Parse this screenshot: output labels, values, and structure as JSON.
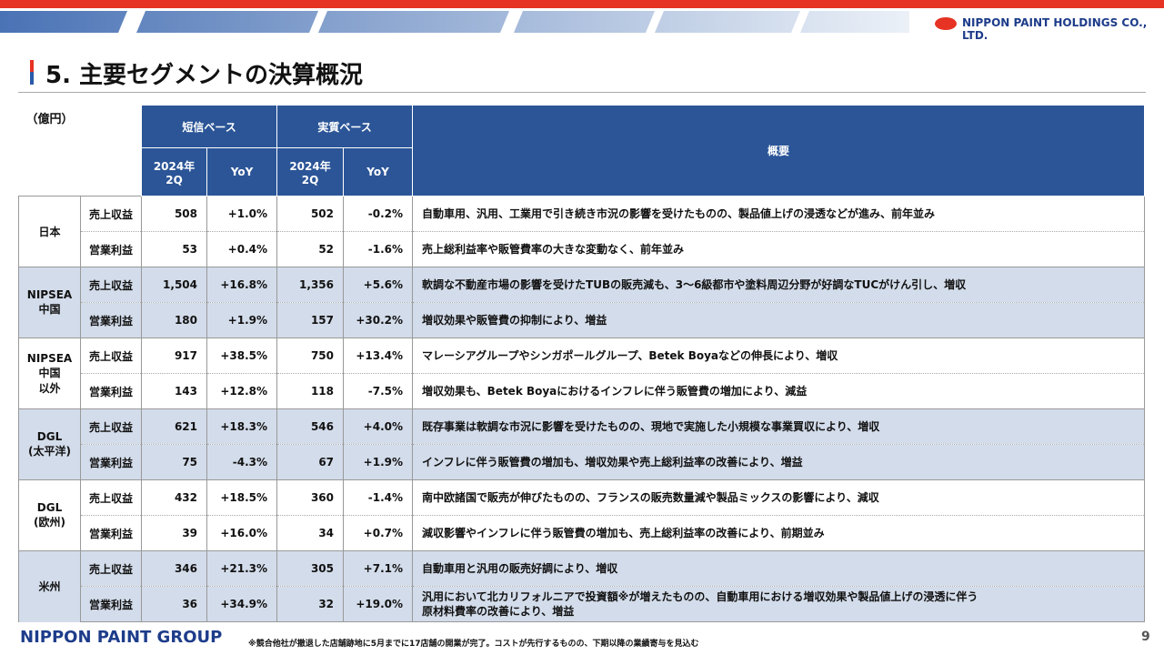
{
  "header": {
    "company": "NIPPON PAINT HOLDINGS CO., LTD.",
    "title": "5. 主要セグメントの決算概況"
  },
  "table": {
    "unit": "（億円）",
    "group_headers": [
      "短信ベース",
      "実質ベース"
    ],
    "summary_header": "概要",
    "sub_headers": [
      "2024年\n2Q",
      "YoY",
      "2024年\n2Q",
      "YoY"
    ],
    "segments": [
      {
        "name": "日本",
        "rows": [
          [
            "売上収益",
            "508",
            "+1.0%",
            "502",
            "-0.2%",
            "自動車用、汎用、工業用で引き続き市況の影響を受けたものの、製品値上げの浸透などが進み、前年並み"
          ],
          [
            "営業利益",
            "53",
            "+0.4%",
            "52",
            "-1.6%",
            "売上総利益率や販管費率の大きな変動なく、前年並み"
          ]
        ]
      },
      {
        "name": "NIPSEA\n中国",
        "rows": [
          [
            "売上収益",
            "1,504",
            "+16.8%",
            "1,356",
            "+5.6%",
            "軟調な不動産市場の影響を受けたTUBの販売減も、3～6級都市や塗料周辺分野が好調なTUCがけん引し、増収"
          ],
          [
            "営業利益",
            "180",
            "+1.9%",
            "157",
            "+30.2%",
            "増収効果や販管費の抑制により、増益"
          ]
        ]
      },
      {
        "name": "NIPSEA\n中国\n以外",
        "rows": [
          [
            "売上収益",
            "917",
            "+38.5%",
            "750",
            "+13.4%",
            "マレーシアグループやシンガポールグループ、Betek Boyaなどの伸長により、増収"
          ],
          [
            "営業利益",
            "143",
            "+12.8%",
            "118",
            "-7.5%",
            "増収効果も、Betek Boyaにおけるインフレに伴う販管費の増加により、減益"
          ]
        ]
      },
      {
        "name": "DGL\n(太平洋)",
        "rows": [
          [
            "売上収益",
            "621",
            "+18.3%",
            "546",
            "+4.0%",
            "既存事業は軟調な市況に影響を受けたものの、現地で実施した小規模な事業買収により、増収"
          ],
          [
            "営業利益",
            "75",
            "-4.3%",
            "67",
            "+1.9%",
            "インフレに伴う販管費の増加も、増収効果や売上総利益率の改善により、増益"
          ]
        ]
      },
      {
        "name": "DGL\n(欧州)",
        "rows": [
          [
            "売上収益",
            "432",
            "+18.5%",
            "360",
            "-1.4%",
            "南中欧諸国で販売が伸びたものの、フランスの販売数量減や製品ミックスの影響により、減収"
          ],
          [
            "営業利益",
            "39",
            "+16.0%",
            "34",
            "+0.7%",
            "減収影響やインフレに伴う販管費の増加も、売上総利益率の改善により、前期並み"
          ]
        ]
      },
      {
        "name": "米州",
        "rows": [
          [
            "売上収益",
            "346",
            "+21.3%",
            "305",
            "+7.1%",
            "自動車用と汎用の販売好調により、増収"
          ],
          [
            "営業利益",
            "36",
            "+34.9%",
            "32",
            "+19.0%",
            "汎用において北カリフォルニアで投資額※が増えたものの、自動車用における増収効果や製品値上げの浸透に伴う\n原材料費率の改善により、増益"
          ]
        ]
      }
    ]
  },
  "footer": {
    "brand": "NIPPON PAINT GROUP",
    "note": "※競合他社が撤退した店舗跡地に5月までに17店舗の開業が完了。コストが先行するものの、下期以降の業績寄与を見込む",
    "page": "9"
  }
}
